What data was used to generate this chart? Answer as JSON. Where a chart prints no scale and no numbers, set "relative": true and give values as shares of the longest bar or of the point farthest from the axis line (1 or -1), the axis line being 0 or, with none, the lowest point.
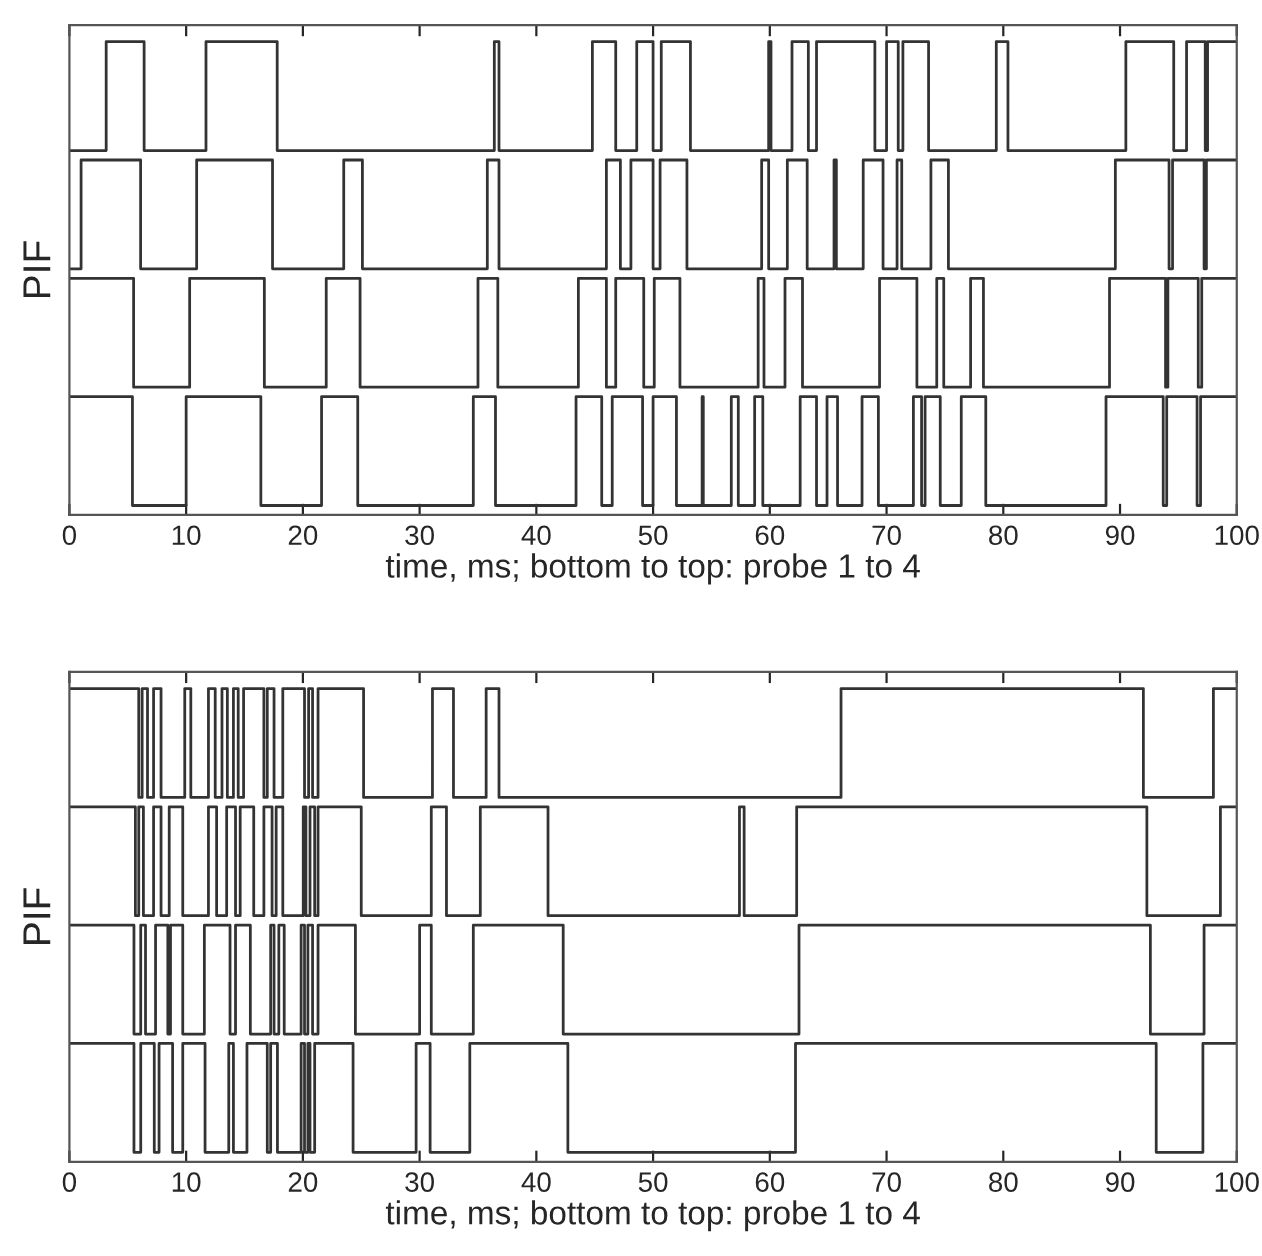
{
  "chart_data": [
    {
      "type": "step",
      "relative": true,
      "xlabel": "time, ms; bottom to top: probe 1 to 4",
      "ylabel": "PIF",
      "xlim": [
        0,
        100
      ],
      "xticks": [
        0,
        10,
        20,
        30,
        40,
        50,
        60,
        70,
        80,
        90,
        100
      ],
      "tick_labels": "x",
      "grid": false,
      "legend": false,
      "line_style": "solid",
      "marker": "none",
      "series": [
        {
          "color": "#333333",
          "x": [
            0,
            5.4,
            10.0,
            16.4,
            21.6,
            24.7,
            34.6,
            36.5,
            43.4,
            45.6,
            46.5,
            49.1,
            50.0,
            52.0,
            54.2,
            54.3,
            56.7,
            57.3,
            58.7,
            59.4,
            62.6,
            64.0,
            64.9,
            65.8,
            67.9,
            69.3,
            72.3,
            73.0,
            73.3,
            74.6,
            76.4,
            78.5,
            88.8,
            93.7,
            94.0,
            96.6,
            96.9,
            100
          ],
          "values": [
            0.25,
            0.02,
            0.25,
            0.02,
            0.25,
            0.02,
            0.25,
            0.02,
            0.25,
            0.02,
            0.25,
            0.02,
            0.25,
            0.02,
            0.25,
            0.02,
            0.25,
            0.02,
            0.25,
            0.02,
            0.25,
            0.02,
            0.25,
            0.02,
            0.25,
            0.02,
            0.25,
            0.02,
            0.25,
            0.02,
            0.25,
            0.02,
            0.25,
            0.02,
            0.25,
            0.02,
            0.25,
            0.25
          ]
        },
        {
          "color": "#333333",
          "x": [
            0,
            5.5,
            10.3,
            16.7,
            22.0,
            24.9,
            35.0,
            36.7,
            43.6,
            46.0,
            46.8,
            49.2,
            50.1,
            52.3,
            59.0,
            59.5,
            61.3,
            62.8,
            69.4,
            72.6,
            74.3,
            74.9,
            77.2,
            78.3,
            89.1,
            93.9,
            94.1,
            96.7,
            97.0,
            100
          ],
          "values": [
            0.5,
            0.27,
            0.5,
            0.27,
            0.5,
            0.27,
            0.5,
            0.27,
            0.5,
            0.27,
            0.5,
            0.27,
            0.5,
            0.27,
            0.5,
            0.27,
            0.5,
            0.27,
            0.5,
            0.27,
            0.5,
            0.27,
            0.5,
            0.27,
            0.5,
            0.27,
            0.5,
            0.27,
            0.5,
            0.5
          ]
        },
        {
          "color": "#333333",
          "x": [
            0,
            1.0,
            6.1,
            10.9,
            17.4,
            23.5,
            25.1,
            35.8,
            36.8,
            46.0,
            47.2,
            48.1,
            50.0,
            50.6,
            52.9,
            59.3,
            59.9,
            61.5,
            63.2,
            65.5,
            65.7,
            68.0,
            69.7,
            70.9,
            71.3,
            73.8,
            75.3,
            89.6,
            94.2,
            94.5,
            97.2,
            97.4,
            100
          ],
          "values": [
            0.52,
            0.75,
            0.52,
            0.75,
            0.52,
            0.75,
            0.52,
            0.75,
            0.52,
            0.75,
            0.52,
            0.75,
            0.52,
            0.75,
            0.52,
            0.75,
            0.52,
            0.75,
            0.52,
            0.75,
            0.52,
            0.75,
            0.52,
            0.75,
            0.52,
            0.75,
            0.52,
            0.75,
            0.52,
            0.75,
            0.52,
            0.75,
            0.75
          ]
        },
        {
          "color": "#333333",
          "x": [
            0,
            3.15,
            6.4,
            11.7,
            17.8,
            36.4,
            36.8,
            44.8,
            46.8,
            48.6,
            50.0,
            50.7,
            53.2,
            59.9,
            60.1,
            61.9,
            63.3,
            64.0,
            69.0,
            70.0,
            71.0,
            71.4,
            73.6,
            79.4,
            80.4,
            90.5,
            94.6,
            95.7,
            97.3,
            97.5,
            100
          ],
          "values": [
            0.77,
            1.0,
            0.77,
            1.0,
            0.77,
            1.0,
            0.77,
            1.0,
            0.77,
            1.0,
            0.77,
            1.0,
            0.77,
            1.0,
            0.77,
            1.0,
            0.77,
            1.0,
            0.77,
            1.0,
            0.77,
            1.0,
            0.77,
            1.0,
            0.77,
            1.0,
            0.77,
            1.0,
            0.77,
            1.0,
            1.0
          ]
        }
      ]
    },
    {
      "type": "step",
      "relative": true,
      "xlabel": "time, ms; bottom to top: probe 1 to 4",
      "ylabel": "PIF",
      "xlim": [
        0,
        100
      ],
      "xticks": [
        0,
        10,
        20,
        30,
        40,
        50,
        60,
        70,
        80,
        90,
        100
      ],
      "tick_labels": "x",
      "grid": false,
      "legend": false,
      "line_style": "solid",
      "marker": "none",
      "series": [
        {
          "color": "#333333",
          "x": [
            0,
            5.53,
            6.11,
            7.27,
            7.68,
            8.84,
            9.71,
            11.62,
            13.65,
            14.05,
            15.21,
            16.95,
            17.24,
            17.82,
            19.85,
            20.14,
            20.43,
            20.61,
            21.01,
            24.3,
            29.7,
            30.9,
            34.3,
            42.7,
            62.2,
            93.1,
            97.1,
            100
          ],
          "values": [
            0.25,
            0.02,
            0.25,
            0.02,
            0.25,
            0.02,
            0.25,
            0.02,
            0.25,
            0.02,
            0.25,
            0.02,
            0.25,
            0.02,
            0.25,
            0.02,
            0.25,
            0.02,
            0.25,
            0.02,
            0.25,
            0.02,
            0.25,
            0.02,
            0.25,
            0.02,
            0.25,
            0.25
          ]
        },
        {
          "color": "#333333",
          "x": [
            0,
            5.53,
            6.11,
            6.52,
            7.38,
            8.43,
            8.66,
            9.71,
            11.56,
            13.76,
            14.23,
            15.5,
            17.24,
            17.53,
            17.94,
            18.4,
            19.85,
            20.14,
            20.43,
            20.83,
            21.3,
            24.5,
            30.0,
            31.0,
            34.6,
            42.3,
            62.5,
            92.6,
            97.2,
            100
          ],
          "values": [
            0.5,
            0.27,
            0.5,
            0.27,
            0.5,
            0.27,
            0.5,
            0.27,
            0.5,
            0.27,
            0.5,
            0.27,
            0.5,
            0.27,
            0.5,
            0.27,
            0.5,
            0.27,
            0.5,
            0.27,
            0.5,
            0.27,
            0.5,
            0.27,
            0.5,
            0.27,
            0.5,
            0.27,
            0.5,
            0.5
          ]
        },
        {
          "color": "#333333",
          "x": [
            0,
            5.65,
            5.94,
            6.34,
            7.21,
            7.85,
            8.55,
            9.71,
            11.91,
            12.61,
            13.47,
            14.23,
            14.63,
            15.79,
            16.66,
            17.36,
            17.71,
            18.28,
            20.03,
            20.26,
            20.61,
            21.01,
            21.3,
            25.0,
            31.0,
            32.3,
            35.2,
            41.0,
            57.4,
            57.8,
            62.3,
            92.3,
            98.6,
            100
          ],
          "values": [
            0.75,
            0.52,
            0.75,
            0.52,
            0.75,
            0.52,
            0.75,
            0.52,
            0.75,
            0.52,
            0.75,
            0.52,
            0.75,
            0.52,
            0.75,
            0.52,
            0.75,
            0.52,
            0.75,
            0.52,
            0.75,
            0.52,
            0.75,
            0.52,
            0.75,
            0.52,
            0.75,
            0.52,
            0.75,
            0.52,
            0.75,
            0.52,
            0.75,
            0.75
          ]
        },
        {
          "color": "#333333",
          "x": [
            0,
            5.94,
            6.23,
            6.69,
            7.21,
            7.85,
            9.88,
            10.4,
            11.91,
            12.49,
            13.07,
            13.53,
            14.05,
            14.46,
            14.92,
            16.66,
            16.95,
            17.53,
            18.28,
            20.14,
            20.49,
            20.83,
            21.3,
            25.2,
            31.1,
            32.9,
            35.7,
            36.8,
            66.1,
            92.0,
            98.0,
            100
          ],
          "values": [
            1.0,
            0.77,
            1.0,
            0.77,
            1.0,
            0.77,
            1.0,
            0.77,
            1.0,
            0.77,
            1.0,
            0.77,
            1.0,
            0.77,
            1.0,
            0.77,
            1.0,
            0.77,
            1.0,
            0.77,
            1.0,
            0.77,
            1.0,
            0.77,
            1.0,
            0.77,
            1.0,
            0.77,
            1.0,
            0.77,
            1.0,
            1.0
          ]
        }
      ]
    }
  ]
}
